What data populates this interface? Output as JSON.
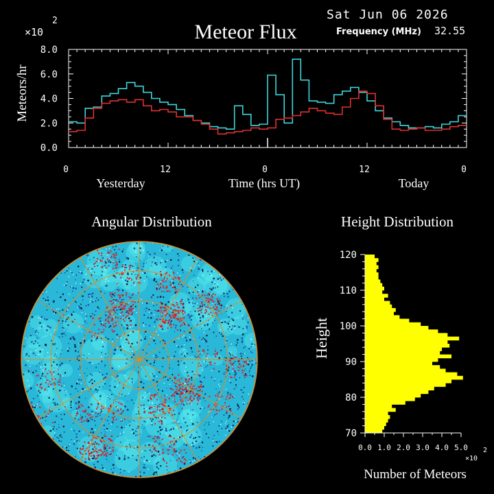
{
  "header": {
    "date": "Sat Jun 06 2026",
    "title": "Meteor Flux",
    "frequency_label": "Frequency (MHz)",
    "frequency_value": "32.55"
  },
  "colors": {
    "background": "#000000",
    "cyan": "#3fd6dc",
    "red": "#e03030",
    "yellow": "#ffff00",
    "white": "#ffffff",
    "orange_grid": "#e08a20"
  },
  "chart_data": [
    {
      "type": "line",
      "name": "flux",
      "title": "Meteor Flux",
      "ylabel": "Meteors/hr",
      "y_multiplier": "×10",
      "y_multiplier_exp": "2",
      "ylim": [
        0,
        8
      ],
      "y_ticks": [
        "0.0",
        "2.0",
        "4.0",
        "6.0",
        "8.0"
      ],
      "x_ticks": [
        "0",
        "12",
        "0",
        "12",
        "0"
      ],
      "x_tick_hours": [
        0,
        12,
        24,
        36,
        48
      ],
      "x_labels": {
        "left": "Yesterday",
        "center": "Time (hrs UT)",
        "right": "Today"
      },
      "step": true,
      "hours": [
        0,
        1,
        2,
        3,
        4,
        5,
        6,
        7,
        8,
        9,
        10,
        11,
        12,
        13,
        14,
        15,
        16,
        17,
        18,
        19,
        20,
        21,
        22,
        23,
        24,
        25,
        26,
        27,
        28,
        29,
        30,
        31,
        32,
        33,
        34,
        35,
        36,
        37,
        38,
        39,
        40,
        41,
        42,
        43,
        44,
        45,
        46,
        47
      ],
      "series": [
        {
          "color": "#3fd6dc",
          "values": [
            2.1,
            2.0,
            3.2,
            3.3,
            4.2,
            4.4,
            4.8,
            5.3,
            5.0,
            4.5,
            4.0,
            3.7,
            3.5,
            3.1,
            2.6,
            2.2,
            2.0,
            1.7,
            1.6,
            1.5,
            3.4,
            2.7,
            1.8,
            1.9,
            5.9,
            4.3,
            2.0,
            7.2,
            5.5,
            3.8,
            3.7,
            3.6,
            4.3,
            4.6,
            4.9,
            4.5,
            3.8,
            3.0,
            2.4,
            2.1,
            1.8,
            1.6,
            1.6,
            1.7,
            1.6,
            1.9,
            2.1,
            2.6
          ]
        },
        {
          "color": "#e03030",
          "values": [
            1.3,
            1.4,
            2.4,
            3.2,
            3.6,
            3.8,
            3.9,
            3.7,
            3.9,
            3.4,
            3.0,
            3.1,
            2.9,
            2.5,
            2.5,
            2.2,
            1.9,
            1.5,
            1.1,
            1.2,
            1.3,
            1.4,
            1.6,
            1.5,
            1.6,
            2.3,
            2.4,
            2.6,
            2.9,
            3.2,
            3.0,
            2.8,
            2.7,
            3.3,
            4.0,
            4.6,
            4.4,
            3.4,
            2.3,
            1.5,
            1.4,
            1.5,
            1.6,
            1.4,
            1.4,
            1.5,
            1.7,
            1.8
          ]
        }
      ]
    },
    {
      "type": "scatter",
      "name": "angular",
      "title": "Angular Distribution",
      "description": "sky map"
    },
    {
      "type": "bar",
      "name": "height",
      "title": "Height Distribution",
      "orientation": "horizontal",
      "ylabel": "Height",
      "xlabel": "Number of Meteors",
      "x_multiplier": "×10",
      "x_multiplier_exp": "2",
      "ylim": [
        70,
        120
      ],
      "xlim": [
        0,
        5
      ],
      "y_ticks": [
        "70",
        "80",
        "90",
        "100",
        "110",
        "120"
      ],
      "x_ticks": [
        "0.0",
        "1.0",
        "2.0",
        "3.0",
        "4.0",
        "5.0"
      ],
      "bin_km": 1,
      "heights": [
        70,
        71,
        72,
        73,
        74,
        75,
        76,
        77,
        78,
        79,
        80,
        81,
        82,
        83,
        84,
        85,
        86,
        87,
        88,
        89,
        90,
        91,
        92,
        93,
        94,
        95,
        96,
        97,
        98,
        99,
        100,
        101,
        102,
        103,
        104,
        105,
        106,
        107,
        108,
        109,
        110,
        111,
        112,
        113,
        114,
        115,
        116,
        117,
        118,
        119
      ],
      "values": [
        0.9,
        1.0,
        1.1,
        1.2,
        1.3,
        1.2,
        1.6,
        1.4,
        2.1,
        2.6,
        2.9,
        3.3,
        3.6,
        4.2,
        4.5,
        5.1,
        4.8,
        4.2,
        3.9,
        3.5,
        3.8,
        4.5,
        3.9,
        4.0,
        4.4,
        4.3,
        4.9,
        4.3,
        3.8,
        3.3,
        2.9,
        2.3,
        1.8,
        1.5,
        1.6,
        1.4,
        1.3,
        1.0,
        1.2,
        0.9,
        1.0,
        0.9,
        0.8,
        0.7,
        0.7,
        0.6,
        0.7,
        0.6,
        0.7,
        0.5
      ]
    }
  ]
}
